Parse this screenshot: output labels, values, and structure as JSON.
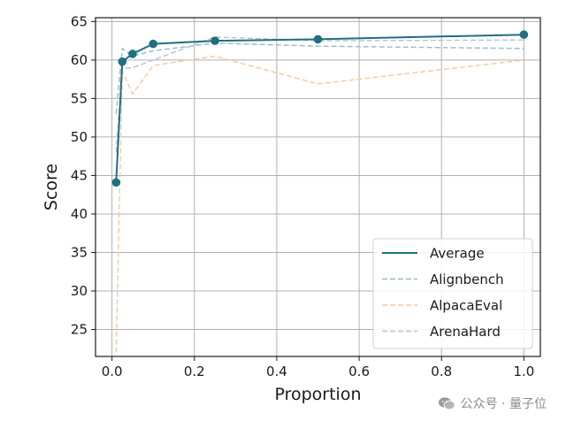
{
  "chart_data": {
    "type": "line",
    "xlabel": "Proportion",
    "ylabel": "Score",
    "xlim": [
      -0.04,
      1.04
    ],
    "ylim": [
      21.5,
      65.5
    ],
    "xticks": [
      0.0,
      0.2,
      0.4,
      0.6,
      0.8,
      1.0
    ],
    "xtick_labels": [
      "0.0",
      "0.2",
      "0.4",
      "0.6",
      "0.8",
      "1.0"
    ],
    "yticks": [
      25,
      30,
      35,
      40,
      45,
      50,
      55,
      60,
      65
    ],
    "ytick_labels": [
      "25",
      "30",
      "35",
      "40",
      "45",
      "50",
      "55",
      "60",
      "65"
    ],
    "grid": true,
    "legend_position": "lower-right",
    "series": [
      {
        "name": "Average",
        "style": "solid",
        "markers": true,
        "color": "#1f6f80",
        "x": [
          0.01,
          0.025,
          0.05,
          0.1,
          0.25,
          0.5,
          1.0
        ],
        "y": [
          44.1,
          59.8,
          60.8,
          62.1,
          62.5,
          62.7,
          63.3
        ]
      },
      {
        "name": "Alignbench",
        "style": "dashed",
        "markers": false,
        "color": "#9cb8c6",
        "x": [
          0.01,
          0.025,
          0.05,
          0.1,
          0.25,
          0.5,
          1.0
        ],
        "y": [
          53.0,
          61.5,
          60.5,
          61.2,
          62.2,
          61.8,
          61.5
        ]
      },
      {
        "name": "AlpacaEval",
        "style": "dashed",
        "markers": false,
        "color": "#f2c9a6",
        "x": [
          0.01,
          0.025,
          0.05,
          0.1,
          0.25,
          0.5,
          1.0
        ],
        "y": [
          22.0,
          58.5,
          55.6,
          59.3,
          60.5,
          56.9,
          60.0
        ]
      },
      {
        "name": "ArenaHard",
        "style": "dashed",
        "markers": false,
        "color": "#b4c2d0",
        "x": [
          0.01,
          0.025,
          0.05,
          0.1,
          0.25,
          0.5,
          1.0
        ],
        "y": [
          48.0,
          58.9,
          59.0,
          60.0,
          63.0,
          62.5,
          62.6
        ]
      }
    ]
  },
  "watermark": {
    "icon": "wechat-icon",
    "text": "公众号 · 量子位"
  }
}
